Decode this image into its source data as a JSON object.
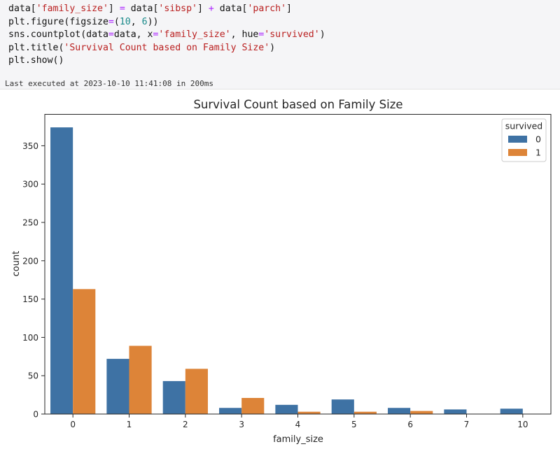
{
  "cell": {
    "code_lines": [
      [
        {
          "t": "data["
        },
        {
          "t": "'family_size'",
          "c": "str"
        },
        {
          "t": "] "
        },
        {
          "t": "=",
          "c": "op"
        },
        {
          "t": " data["
        },
        {
          "t": "'sibsp'",
          "c": "str"
        },
        {
          "t": "] "
        },
        {
          "t": "+",
          "c": "op"
        },
        {
          "t": " data["
        },
        {
          "t": "'parch'",
          "c": "str"
        },
        {
          "t": "]"
        }
      ],
      [
        {
          "t": "plt.figure(figsize"
        },
        {
          "t": "=",
          "c": "op"
        },
        {
          "t": "("
        },
        {
          "t": "10",
          "c": "num"
        },
        {
          "t": ", "
        },
        {
          "t": "6",
          "c": "num"
        },
        {
          "t": "))"
        }
      ],
      [
        {
          "t": "sns.countplot(data"
        },
        {
          "t": "=",
          "c": "op"
        },
        {
          "t": "data, x"
        },
        {
          "t": "=",
          "c": "op"
        },
        {
          "t": "'family_size'",
          "c": "str"
        },
        {
          "t": ", hue"
        },
        {
          "t": "=",
          "c": "op"
        },
        {
          "t": "'survived'",
          "c": "str"
        },
        {
          "t": ")"
        }
      ],
      [
        {
          "t": "plt.title("
        },
        {
          "t": "'Survival Count based on Family Size'",
          "c": "str"
        },
        {
          "t": ")"
        }
      ],
      [
        {
          "t": "plt.show()"
        }
      ]
    ],
    "status": "Last executed at 2023-10-10 11:41:08 in 200ms"
  },
  "colors": {
    "series_0": "#3e72a4",
    "series_1": "#dd8438"
  },
  "chart_data": {
    "type": "bar",
    "title": "Survival Count based on Family Size",
    "xlabel": "family_size",
    "ylabel": "count",
    "categories": [
      "0",
      "1",
      "2",
      "3",
      "4",
      "5",
      "6",
      "7",
      "10"
    ],
    "series": [
      {
        "name": "0",
        "values": [
          374,
          72,
          43,
          8,
          12,
          19,
          8,
          6,
          7
        ]
      },
      {
        "name": "1",
        "values": [
          163,
          89,
          59,
          21,
          3,
          3,
          4,
          0,
          0
        ]
      }
    ],
    "ylim": [
      0,
      391
    ],
    "yticks": [
      0,
      50,
      100,
      150,
      200,
      250,
      300,
      350
    ],
    "legend": {
      "title": "survived",
      "position": "top-right"
    },
    "grid": false
  }
}
